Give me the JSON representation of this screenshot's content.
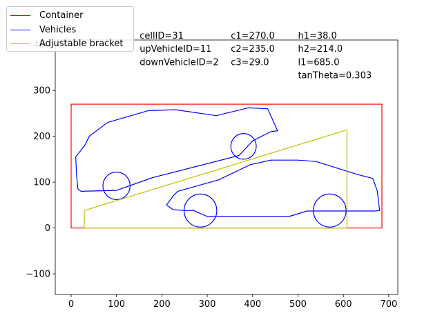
{
  "chart_data": {
    "type": "line",
    "title": "",
    "xlabel": "",
    "ylabel": "",
    "xlim": [
      -35,
      720
    ],
    "ylim": [
      -145,
      410
    ],
    "xticks": [
      0,
      100,
      200,
      300,
      400,
      500,
      600,
      700
    ],
    "yticks": [
      -100,
      0,
      100,
      200,
      300,
      400
    ],
    "grid": false,
    "legend_position": "top-left",
    "colors": {
      "container": "#ff0000",
      "vehicles": "#0000ff",
      "bracket": "#bfbf00"
    },
    "series": [
      {
        "name": "Container",
        "kind": "rect",
        "x0": 0,
        "y0": 0,
        "x1": 685,
        "y1": 270
      },
      {
        "name": "Vehicles",
        "kind": "outlines",
        "polylines": [
          [
            [
              10,
              155
            ],
            [
              12,
              115
            ],
            [
              15,
              85
            ],
            [
              22,
              80
            ],
            [
              100,
              82
            ],
            [
              180,
              110
            ],
            [
              370,
              158
            ],
            [
              400,
              190
            ],
            [
              440,
              210
            ],
            [
              455,
              212
            ],
            [
              433,
              260
            ],
            [
              390,
              262
            ],
            [
              320,
              245
            ],
            [
              230,
              258
            ],
            [
              170,
              256
            ],
            [
              80,
              230
            ],
            [
              40,
              200
            ],
            [
              30,
              180
            ],
            [
              10,
              155
            ]
          ],
          [
            [
              210,
              50
            ],
            [
              225,
              40
            ],
            [
              250,
              38
            ],
            [
              270,
              38
            ],
            [
              300,
              25
            ],
            [
              480,
              25
            ],
            [
              520,
              37
            ],
            [
              670,
              37
            ],
            [
              680,
              38
            ],
            [
              675,
              80
            ],
            [
              665,
              108
            ],
            [
              630,
              117
            ],
            [
              540,
              145
            ],
            [
              500,
              148
            ],
            [
              440,
              148
            ],
            [
              395,
              138
            ],
            [
              325,
              105
            ],
            [
              235,
              80
            ],
            [
              225,
              70
            ],
            [
              210,
              50
            ]
          ]
        ],
        "circles": [
          {
            "cx": 100,
            "cy": 92,
            "r": 30
          },
          {
            "cx": 380,
            "cy": 178,
            "r": 28
          },
          {
            "cx": 285,
            "cy": 38,
            "r": 36
          },
          {
            "cx": 570,
            "cy": 38,
            "r": 36
          }
        ]
      },
      {
        "name": "Adjustable bracket",
        "kind": "polygon",
        "points": [
          [
            29,
            0
          ],
          [
            608,
            0
          ],
          [
            608,
            214
          ],
          [
            29,
            38
          ],
          [
            29,
            0
          ]
        ]
      }
    ],
    "annotations": [
      {
        "label": "cellID=31",
        "x": 151,
        "y": 420
      },
      {
        "label": "upVehicleID=11",
        "x": 151,
        "y": 391
      },
      {
        "label": "downVehicleID=2",
        "x": 151,
        "y": 362
      },
      {
        "label": "c1=270.0",
        "x": 352,
        "y": 420
      },
      {
        "label": "c2=235.0",
        "x": 352,
        "y": 391
      },
      {
        "label": "c3=29.0",
        "x": 352,
        "y": 362
      },
      {
        "label": "h1=38.0",
        "x": 500,
        "y": 420
      },
      {
        "label": "h2=214.0",
        "x": 500,
        "y": 391
      },
      {
        "label": "l1=685.0",
        "x": 500,
        "y": 362
      },
      {
        "label": "tanTheta=0.303",
        "x": 500,
        "y": 333
      }
    ]
  },
  "legend": {
    "items": [
      {
        "label": "Container",
        "color": "#ff0000"
      },
      {
        "label": "Vehicles",
        "color": "#0000ff"
      },
      {
        "label": "Adjustable bracket",
        "color": "#bfbf00"
      }
    ]
  }
}
